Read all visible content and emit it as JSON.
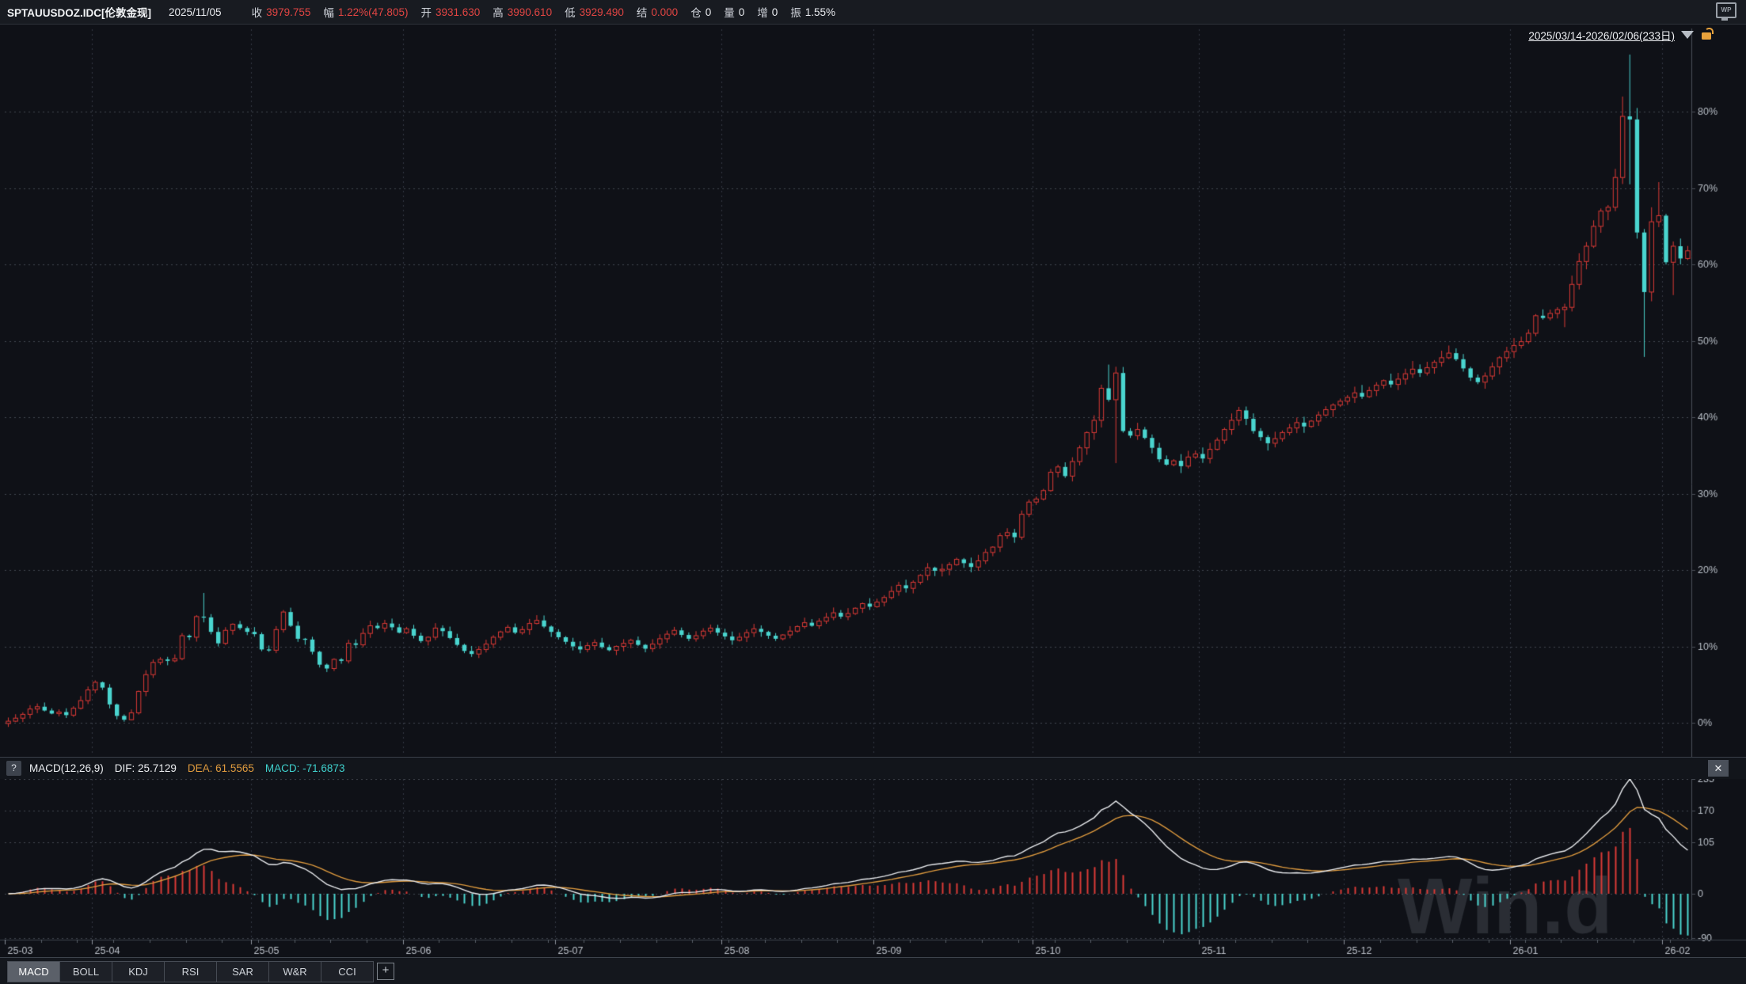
{
  "quote_bar": {
    "symbol": "SPTAUUSDOZ.IDC[伦敦金现]",
    "date": "2025/11/05",
    "fields": [
      {
        "label": "收",
        "value": "3979.755",
        "tone": "up"
      },
      {
        "label": "幅",
        "value": "1.22%(47.805)",
        "tone": "up"
      },
      {
        "label": "开",
        "value": "3931.630",
        "tone": "up"
      },
      {
        "label": "高",
        "value": "3990.610",
        "tone": "up"
      },
      {
        "label": "低",
        "value": "3929.490",
        "tone": "up"
      },
      {
        "label": "结",
        "value": "0.000",
        "tone": "up"
      },
      {
        "label": "仓",
        "value": "0",
        "tone": "plain"
      },
      {
        "label": "量",
        "value": "0",
        "tone": "plain"
      },
      {
        "label": "增",
        "value": "0",
        "tone": "plain"
      },
      {
        "label": "振",
        "value": "1.55%",
        "tone": "plain"
      }
    ],
    "wp_icon": "WP"
  },
  "range_selector": {
    "label": "2025/03/14-2026/02/06(233日)"
  },
  "indicator_header": {
    "help": "?",
    "name": "MACD(12,26,9)",
    "dif": "DIF: 25.7129",
    "dea": "DEA: 61.5565",
    "macd": "MACD: -71.6873",
    "close": "✕"
  },
  "tab_bar": {
    "tabs": [
      {
        "label": "MACD",
        "active": true
      },
      {
        "label": "BOLL",
        "active": false
      },
      {
        "label": "KDJ",
        "active": false
      },
      {
        "label": "RSI",
        "active": false
      },
      {
        "label": "SAR",
        "active": false
      },
      {
        "label": "W&R",
        "active": false
      },
      {
        "label": "CCI",
        "active": false
      }
    ],
    "add_label": "+"
  },
  "watermark": "Win.d",
  "colors": {
    "up": "#db3a36",
    "down": "#4ad5cf",
    "dif_line": "#e9ebee",
    "dea_line": "#de9a3e",
    "grid": "#424750",
    "month_grid": "#333842",
    "axis_text": "#b9bfc7",
    "axis_line": "#4a4f58",
    "watermark_color": "rgba(150,158,168,0.20)"
  },
  "chart_data": {
    "type": "candlestick_with_macd",
    "title": "SPTAUUSDOZ.IDC 伦敦金现 daily, cumulative percent-change axis",
    "date_range": "2025/03/14-2026/02/06",
    "days": 233,
    "y_axis_percent_ticks": [
      80,
      70,
      60,
      50,
      40,
      30,
      20,
      10,
      0
    ],
    "macd_axis_ticks": [
      235,
      170,
      105,
      0,
      -90
    ],
    "months": [
      {
        "label": "25-03",
        "day": 0
      },
      {
        "label": "25-04",
        "day": 12
      },
      {
        "label": "25-05",
        "day": 34
      },
      {
        "label": "25-06",
        "day": 55
      },
      {
        "label": "25-07",
        "day": 76
      },
      {
        "label": "25-08",
        "day": 99
      },
      {
        "label": "25-09",
        "day": 120
      },
      {
        "label": "25-10",
        "day": 142
      },
      {
        "label": "25-11",
        "day": 165
      },
      {
        "label": "25-12",
        "day": 185
      },
      {
        "label": "26-01",
        "day": 208
      },
      {
        "label": "26-02",
        "day": 229
      }
    ],
    "closes_pct": [
      0.2,
      0.6,
      1.1,
      1.8,
      2.1,
      1.6,
      1.2,
      1.4,
      1.0,
      1.9,
      2.9,
      4.3,
      5.3,
      4.6,
      2.4,
      0.9,
      0.4,
      1.3,
      4.1,
      6.3,
      7.9,
      8.3,
      8.1,
      8.4,
      11.4,
      11.2,
      13.9,
      13.8,
      11.9,
      10.4,
      12.1,
      12.9,
      12.4,
      11.9,
      11.6,
      9.6,
      9.5,
      12.2,
      14.5,
      12.7,
      11.0,
      10.9,
      9.3,
      7.6,
      7.1,
      8.3,
      8.1,
      10.4,
      10.2,
      11.7,
      12.7,
      12.4,
      13.0,
      12.5,
      11.8,
      12.3,
      11.4,
      10.7,
      11.2,
      12.4,
      12.0,
      11.1,
      10.2,
      9.4,
      9.0,
      9.6,
      10.3,
      11.2,
      11.9,
      12.5,
      11.8,
      12.2,
      13.0,
      13.4,
      12.6,
      11.9,
      11.2,
      10.6,
      10.0,
      9.6,
      10.1,
      10.5,
      9.9,
      9.5,
      10.0,
      10.4,
      10.8,
      10.2,
      9.7,
      10.3,
      11.0,
      11.6,
      12.1,
      11.5,
      11.0,
      11.4,
      12.0,
      12.4,
      11.8,
      11.3,
      10.8,
      11.2,
      11.8,
      12.3,
      11.9,
      11.4,
      11.0,
      11.5,
      12.0,
      12.6,
      13.1,
      12.7,
      13.3,
      13.8,
      14.4,
      13.9,
      14.3,
      15.0,
      15.6,
      15.2,
      15.8,
      16.4,
      17.2,
      18.0,
      17.6,
      18.4,
      19.3,
      20.3,
      19.9,
      20.1,
      20.7,
      21.4,
      20.9,
      20.4,
      21.2,
      22.3,
      23.0,
      24.5,
      24.9,
      24.3,
      27.3,
      28.9,
      29.3,
      30.4,
      32.8,
      33.5,
      32.3,
      34.2,
      36.0,
      38.0,
      39.6,
      43.8,
      42.3,
      45.8,
      38.2,
      37.6,
      38.4,
      37.3,
      36.0,
      34.5,
      33.8,
      34.3,
      33.6,
      34.8,
      35.2,
      34.6,
      35.8,
      37.0,
      38.4,
      39.6,
      40.9,
      39.8,
      38.2,
      37.4,
      36.6,
      37.2,
      38.0,
      38.6,
      39.3,
      38.8,
      39.5,
      40.3,
      41.0,
      41.6,
      42.1,
      42.6,
      43.2,
      42.7,
      43.5,
      44.2,
      44.8,
      44.3,
      45.0,
      45.7,
      46.3,
      45.8,
      46.5,
      47.2,
      47.8,
      48.4,
      47.6,
      46.4,
      45.2,
      44.6,
      45.4,
      46.6,
      47.8,
      48.6,
      49.4,
      49.9,
      51.0,
      53.3,
      53.0,
      53.6,
      54.1,
      54.4,
      57.4,
      60.4,
      62.4,
      65.0,
      67.0,
      67.5,
      71.4,
      79.4,
      79.0,
      64.2,
      56.4,
      65.6,
      66.4,
      60.3,
      62.4,
      60.8,
      61.8
    ],
    "wick_overrides": [
      {
        "i": 27,
        "high": 17.0
      },
      {
        "i": 152,
        "high": 46.9
      },
      {
        "i": 153,
        "low": 34.0
      },
      {
        "i": 215,
        "low": 51.8
      },
      {
        "i": 223,
        "high": 82.0
      },
      {
        "i": 224,
        "high": 87.5,
        "low": 70.5
      },
      {
        "i": 225,
        "high": 80.5
      },
      {
        "i": 226,
        "low": 47.9
      },
      {
        "i": 227,
        "high": 67.5
      },
      {
        "i": 228,
        "high": 70.8
      },
      {
        "i": 230,
        "low": 56.0
      }
    ],
    "macd_params": {
      "fast": 12,
      "slow": 26,
      "signal": 9
    },
    "base_price": 2950
  }
}
